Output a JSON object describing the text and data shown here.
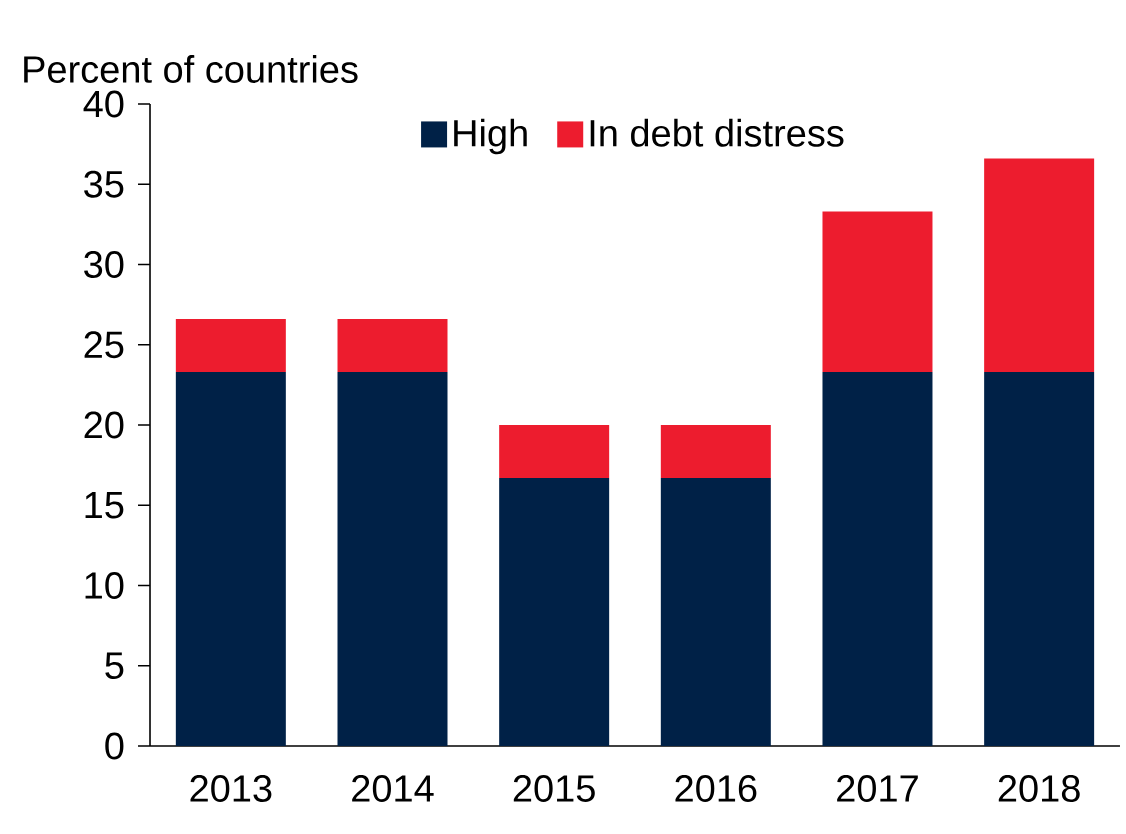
{
  "chart_data": {
    "type": "bar",
    "stacked": true,
    "ylabel": "Percent of countries",
    "categories": [
      "2013",
      "2014",
      "2015",
      "2016",
      "2017",
      "2018"
    ],
    "series": [
      {
        "name": "High",
        "color": "#002147",
        "values": [
          23.3,
          23.3,
          16.7,
          16.7,
          23.3,
          23.3
        ]
      },
      {
        "name": "In debt distress",
        "color": "#ed1c2e",
        "values": [
          3.3,
          3.3,
          3.3,
          3.3,
          10,
          13.3
        ]
      }
    ],
    "ylim": [
      0,
      40
    ],
    "yticks": [
      0,
      5,
      10,
      15,
      20,
      25,
      30,
      35,
      40
    ],
    "legend": "top"
  }
}
